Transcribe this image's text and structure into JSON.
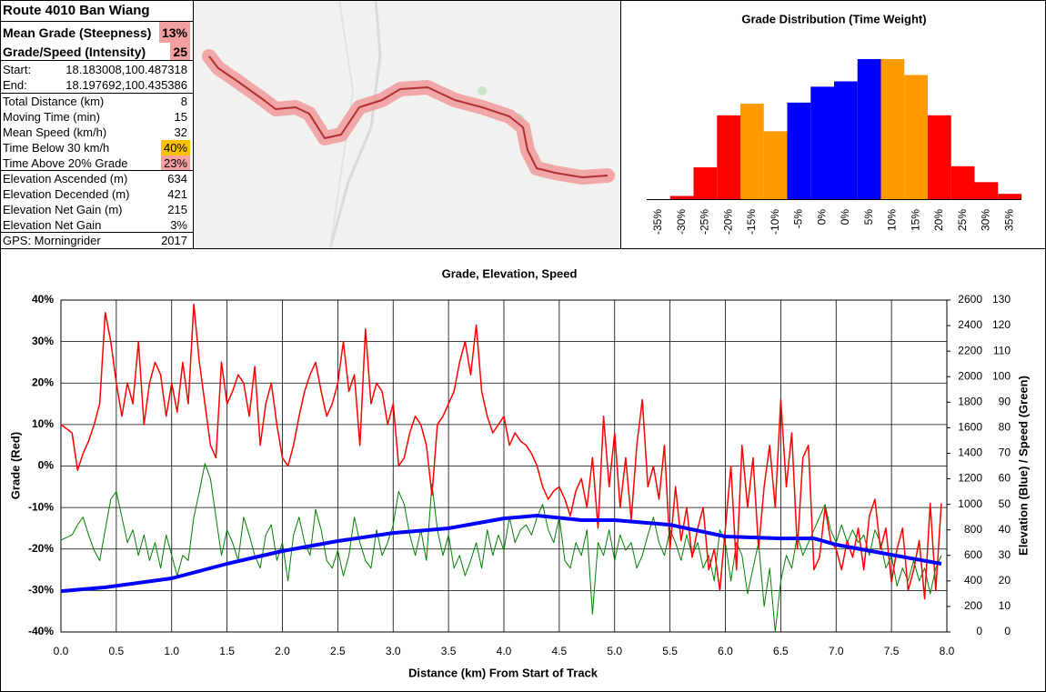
{
  "stats": {
    "title": "Route 4010 Ban Wiang",
    "rows": [
      {
        "label": "Mean Grade (Steepness)",
        "value": "13%",
        "fill": "#f4a0a0",
        "bold": true
      },
      {
        "label": "Grade/Speed (Intensity)",
        "value": 25,
        "fill": "#f4a0a0",
        "bold": true
      },
      {
        "label": "Start:",
        "value": "18.183008,100.487318"
      },
      {
        "label": "End:",
        "value": "18.197692,100.435386"
      },
      {
        "label": "Total Distance (km)",
        "value": 8
      },
      {
        "label": "Moving Time (min)",
        "value": 15
      },
      {
        "label": "Mean Speed (km/h)",
        "value": 32
      },
      {
        "label": "Time Below 30 km/h",
        "value": "40%",
        "fill": "#ffc000"
      },
      {
        "label": "Time Above 20% Grade",
        "value": "23%",
        "fill": "#f4a0a0"
      },
      {
        "label": "Elevation Ascended (m)",
        "value": 634
      },
      {
        "label": "Elevation Decended (m)",
        "value": 421
      },
      {
        "label": "Elevation Net Gain (m)",
        "value": 215
      },
      {
        "label": "Elevation Net Gain",
        "value": "3%"
      },
      {
        "label": "GPS: Morningrider",
        "value": 2017
      }
    ]
  },
  "chart_data": [
    {
      "type": "bar",
      "title": "Grade Distribution (Time Weight)",
      "categories": [
        "-35%",
        "-30%",
        "-25%",
        "-20%",
        "-15%",
        "-10%",
        "-5%",
        "0%",
        "0%",
        "5%",
        "10%",
        "15%",
        "20%",
        "25%",
        "30%",
        "35%"
      ],
      "values": [
        0,
        0.3,
        3,
        7.9,
        9,
        6.4,
        9.1,
        10.6,
        11.1,
        13.2,
        13.2,
        11.7,
        7.9,
        3.1,
        1.6,
        0.5
      ],
      "colors": [
        "#ff0000",
        "#ff0000",
        "#ff0000",
        "#ff0000",
        "#ff9900",
        "#ff9900",
        "#0000ff",
        "#0000ff",
        "#0000ff",
        "#0000ff",
        "#ff9900",
        "#ff9900",
        "#ff0000",
        "#ff0000",
        "#ff0000",
        "#ff0000"
      ],
      "ylim": [
        0,
        13.2
      ]
    },
    {
      "type": "line",
      "title": "Grade, Elevation, Speed",
      "xlabel": "Distance (km) From Start of Track",
      "ylabel": "Grade (Red)",
      "y2label": "Elevation (Blue) / Speed (Green)",
      "xlim": [
        0,
        8
      ],
      "xticks": [
        {
          "value": 0,
          "label": "0.0"
        },
        0.5,
        {
          "value": 1,
          "label": "1.0"
        },
        1.5,
        {
          "value": 2,
          "label": "2.0"
        },
        2.5,
        {
          "value": 3,
          "label": "3.0"
        },
        3.5,
        {
          "value": 4,
          "label": "4.0"
        },
        4.5,
        {
          "value": 5,
          "label": "5.0"
        },
        5.5,
        {
          "value": 6,
          "label": "6.0"
        },
        6.5,
        {
          "value": 7,
          "label": "7.0"
        },
        7.5,
        {
          "value": 8,
          "label": "8.0"
        }
      ],
      "ylim": [
        -40,
        40
      ],
      "yticks": [
        {
          "value": -40,
          "label": "-40%"
        },
        {
          "value": -30,
          "label": "-30%"
        },
        {
          "value": -20,
          "label": "-20%"
        },
        {
          "value": -10,
          "label": "-10%"
        },
        {
          "value": 0,
          "label": "0%"
        },
        {
          "value": 10,
          "label": "10%"
        },
        {
          "value": 20,
          "label": "20%"
        },
        {
          "value": 30,
          "label": "30%"
        },
        {
          "value": 40,
          "label": "40%"
        }
      ],
      "y2lim": [
        0,
        2600
      ],
      "y2ticks": [
        0,
        200,
        400,
        600,
        800,
        1000,
        1200,
        1400,
        1600,
        1800,
        2000,
        2200,
        2400,
        2600
      ],
      "y3lim": [
        0,
        130
      ],
      "y3ticks": [
        0,
        10,
        20,
        30,
        40,
        50,
        60,
        70,
        80,
        90,
        100,
        110,
        120,
        130
      ],
      "grid": true,
      "x": [
        0,
        0.05,
        0.1,
        0.15,
        0.2,
        0.25,
        0.3,
        0.35,
        0.4,
        0.45,
        0.5,
        0.55,
        0.6,
        0.65,
        0.7,
        0.75,
        0.8,
        0.85,
        0.9,
        0.95,
        1,
        1.05,
        1.1,
        1.15,
        1.2,
        1.25,
        1.3,
        1.35,
        1.4,
        1.45,
        1.5,
        1.55,
        1.6,
        1.65,
        1.7,
        1.75,
        1.8,
        1.85,
        1.9,
        1.95,
        2,
        2.05,
        2.1,
        2.15,
        2.2,
        2.25,
        2.3,
        2.35,
        2.4,
        2.45,
        2.5,
        2.55,
        2.6,
        2.65,
        2.7,
        2.75,
        2.8,
        2.85,
        2.9,
        2.95,
        3,
        3.05,
        3.1,
        3.15,
        3.2,
        3.25,
        3.3,
        3.35,
        3.4,
        3.45,
        3.5,
        3.55,
        3.6,
        3.65,
        3.7,
        3.75,
        3.8,
        3.85,
        3.9,
        3.95,
        4,
        4.05,
        4.1,
        4.15,
        4.2,
        4.25,
        4.3,
        4.35,
        4.4,
        4.45,
        4.5,
        4.55,
        4.6,
        4.65,
        4.7,
        4.75,
        4.8,
        4.85,
        4.9,
        4.95,
        5,
        5.05,
        5.1,
        5.15,
        5.2,
        5.25,
        5.3,
        5.35,
        5.4,
        5.45,
        5.5,
        5.55,
        5.6,
        5.65,
        5.7,
        5.75,
        5.8,
        5.85,
        5.9,
        5.95,
        6,
        6.05,
        6.1,
        6.15,
        6.2,
        6.25,
        6.3,
        6.35,
        6.4,
        6.45,
        6.5,
        6.55,
        6.6,
        6.65,
        6.7,
        6.75,
        6.8,
        6.85,
        6.9,
        6.95,
        7,
        7.05,
        7.1,
        7.15,
        7.2,
        7.25,
        7.3,
        7.35,
        7.4,
        7.45,
        7.5,
        7.55,
        7.6,
        7.65,
        7.7,
        7.75,
        7.8,
        7.85,
        7.9,
        7.95
      ],
      "series": [
        {
          "color": "#008000",
          "axis": "y3",
          "width": 1,
          "values": [
            36,
            37,
            38,
            42,
            45,
            38,
            32,
            28,
            40,
            52,
            55,
            45,
            35,
            40,
            30,
            38,
            28,
            35,
            25,
            38,
            30,
            22,
            30,
            28,
            45,
            55,
            66,
            60,
            45,
            30,
            40,
            35,
            28,
            45,
            38,
            30,
            25,
            38,
            42,
            28,
            35,
            20,
            38,
            45,
            35,
            30,
            48,
            40,
            28,
            25,
            32,
            22,
            30,
            45,
            35,
            28,
            25,
            40,
            30,
            35,
            42,
            55,
            50,
            38,
            30,
            40,
            28,
            58,
            40,
            30,
            38,
            25,
            30,
            22,
            28,
            35,
            25,
            40,
            30,
            38,
            32,
            45,
            35,
            40,
            42,
            38,
            45,
            50,
            40,
            35,
            45,
            28,
            25,
            35,
            30,
            40,
            7,
            35,
            30,
            40,
            28,
            38,
            32,
            35,
            25,
            30,
            38,
            45,
            35,
            30,
            40,
            35,
            28,
            38,
            30,
            35,
            25,
            30,
            20,
            40,
            35,
            20,
            35,
            30,
            15,
            25,
            35,
            10,
            25,
            0,
            20,
            30,
            25,
            38,
            30,
            35,
            40,
            45,
            50,
            40,
            35,
            42,
            35,
            40,
            35,
            38,
            30,
            40,
            35,
            25,
            30,
            18,
            25,
            20,
            28,
            20,
            25,
            15,
            25,
            30
          ]
        },
        {
          "color": "#ff0000",
          "width": 1.5,
          "values": [
            10,
            9,
            8,
            -1,
            3,
            6,
            10,
            15,
            37,
            30,
            20,
            12,
            20,
            15,
            30,
            10,
            20,
            25,
            22,
            12,
            20,
            13,
            25,
            15,
            39,
            25,
            15,
            5,
            2,
            25,
            15,
            18,
            22,
            20,
            12,
            24,
            5,
            15,
            20,
            10,
            2,
            0,
            5,
            12,
            18,
            22,
            25,
            18,
            12,
            15,
            20,
            30,
            18,
            22,
            5,
            33,
            15,
            20,
            18,
            10,
            15,
            0,
            2,
            8,
            12,
            10,
            5,
            -7,
            10,
            12,
            15,
            18,
            25,
            30,
            22,
            34,
            18,
            12,
            8,
            10,
            12,
            5,
            8,
            6,
            5,
            3,
            0,
            -5,
            -8,
            -6,
            -5,
            -8,
            -12,
            -6,
            -3,
            -10,
            2,
            -15,
            12,
            -5,
            8,
            -10,
            2,
            -13,
            5,
            16,
            -5,
            0,
            -8,
            5,
            -20,
            -5,
            -18,
            -10,
            -22,
            -15,
            -10,
            -25,
            -20,
            -30,
            -15,
            0,
            -25,
            5,
            -10,
            2,
            -20,
            -5,
            5,
            -10,
            16,
            -5,
            8,
            -20,
            2,
            5,
            -25,
            -22,
            -10,
            -18,
            -20,
            -25,
            -18,
            -22,
            -15,
            -25,
            -12,
            -8,
            -20,
            -15,
            -28,
            -20,
            -15,
            -30,
            -25,
            -18,
            -32,
            -9,
            -30,
            -9
          ]
        },
        {
          "color": "#0000ff",
          "axis": "y2",
          "width": 4,
          "x": [
            0,
            0.4,
            1,
            1.5,
            2,
            2.5,
            3,
            3.5,
            4,
            4.3,
            4.7,
            5,
            5.5,
            6,
            6.5,
            6.8,
            7,
            7.5,
            7.95
          ],
          "values": [
            320,
            350,
            420,
            534,
            634,
            712,
            776,
            812,
            890,
            912,
            876,
            876,
            840,
            748,
            733,
            733,
            684,
            605,
            534
          ]
        }
      ]
    }
  ]
}
